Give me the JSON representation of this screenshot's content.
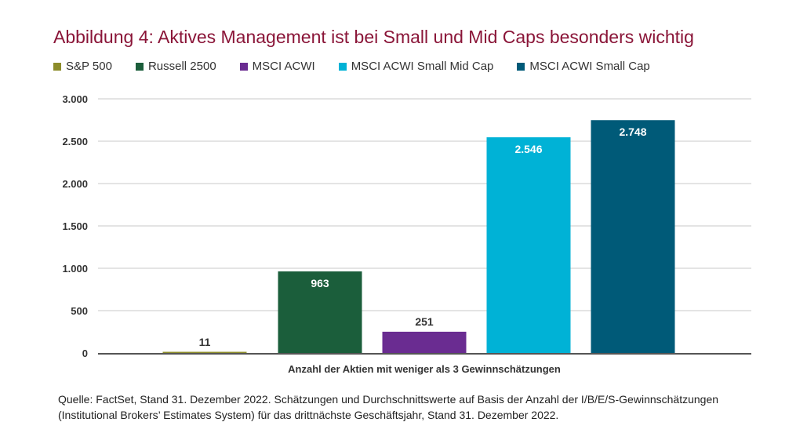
{
  "chart_data": {
    "type": "bar",
    "title": "Abbildung 4: Aktives Management ist bei Small und Mid Caps besonders wichtig",
    "categories": [
      "S&P 500",
      "Russell 2500",
      "MSCI ACWI",
      "MSCI ACWI Small Mid Cap",
      "MSCI ACWI Small Cap"
    ],
    "values": [
      11,
      963,
      251,
      2546,
      2748
    ],
    "value_labels": [
      "11",
      "963",
      "251",
      "2.546",
      "2.748"
    ],
    "colors": [
      "#8c8c2a",
      "#1b5e3b",
      "#6a2c91",
      "#00b2d6",
      "#005a78"
    ],
    "legend": [
      "S&P 500",
      "Russell 2500",
      "MSCI ACWI",
      "MSCI ACWI Small Mid Cap",
      "MSCI ACWI Small Cap"
    ],
    "legend_placement": "top-left",
    "xlabel": "Anzahl der Aktien mit weniger als 3 Gewinnschätzungen",
    "ylabel": "",
    "ylim": [
      0,
      3000
    ],
    "yticks": [
      0,
      500,
      1000,
      1500,
      2000,
      2500,
      3000
    ],
    "ytick_labels": [
      "0",
      "500",
      "1.000",
      "1.500",
      "2.000",
      "2.500",
      "3.000"
    ],
    "grid": true
  },
  "source_note": "Quelle: FactSet, Stand 31. Dezember 2022. Schätzungen und Durchschnittswerte auf Basis der Anzahl der I/B/E/S-Gewinnschätzungen (Institutional Brokers’ Estimates System) für das drittnächste Geschäftsjahr, Stand 31. Dezember 2022."
}
